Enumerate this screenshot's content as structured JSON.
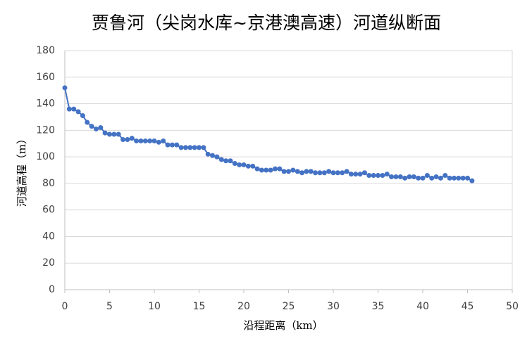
{
  "chart_data": {
    "type": "line",
    "title": "贾鲁河（尖岗水库~京港澳高速）河道纵断面",
    "x_label": "沿程距离（km）",
    "y_label": "河道高程（m）",
    "x": [
      0,
      0.5,
      1,
      1.5,
      2,
      2.5,
      3,
      3.5,
      4,
      4.5,
      5,
      5.5,
      6,
      6.5,
      7,
      7.5,
      8,
      8.5,
      9,
      9.5,
      10,
      10.5,
      11,
      11.5,
      12,
      12.5,
      13,
      13.5,
      14,
      14.5,
      15,
      15.5,
      16,
      16.5,
      17,
      17.5,
      18,
      18.5,
      19,
      19.5,
      20,
      20.5,
      21,
      21.5,
      22,
      22.5,
      23,
      23.5,
      24,
      24.5,
      25,
      25.5,
      26,
      26.5,
      27,
      27.5,
      28,
      28.5,
      29,
      29.5,
      30,
      30.5,
      31,
      31.5,
      32,
      32.5,
      33,
      33.5,
      34,
      34.5,
      35,
      35.5,
      36,
      36.5,
      37,
      37.5,
      38,
      38.5,
      39,
      39.5,
      40,
      40.5,
      41,
      41.5,
      42,
      42.5,
      43,
      43.5,
      44,
      44.5,
      45,
      45.5
    ],
    "series": [
      {
        "color": "#4472c4",
        "values": [
          152,
          136,
          136,
          134,
          131,
          126,
          123,
          121,
          122,
          118,
          117,
          117,
          117,
          113,
          113,
          114,
          112,
          112,
          112,
          112,
          112,
          111,
          112,
          109,
          109,
          109,
          107,
          107,
          107,
          107,
          107,
          107,
          102,
          101,
          100,
          98,
          97,
          97,
          95,
          94,
          94,
          93,
          93,
          91,
          90,
          90,
          90,
          91,
          91,
          89,
          89,
          90,
          89,
          88,
          89,
          89,
          88,
          88,
          88,
          89,
          88,
          88,
          88,
          89,
          87,
          87,
          87,
          88,
          86,
          86,
          86,
          86,
          87,
          85,
          85,
          85,
          84,
          85,
          85,
          84,
          84,
          86,
          84,
          85,
          84,
          86,
          84,
          84,
          84,
          84,
          84,
          82
        ]
      }
    ],
    "xlim": [
      0,
      50
    ],
    "xticks": [
      0,
      5,
      10,
      15,
      20,
      25,
      30,
      35,
      40,
      45,
      50
    ],
    "ylim": [
      0,
      180
    ],
    "yticks": [
      0,
      20,
      40,
      60,
      80,
      100,
      120,
      140,
      160,
      180
    ],
    "grid": true
  }
}
